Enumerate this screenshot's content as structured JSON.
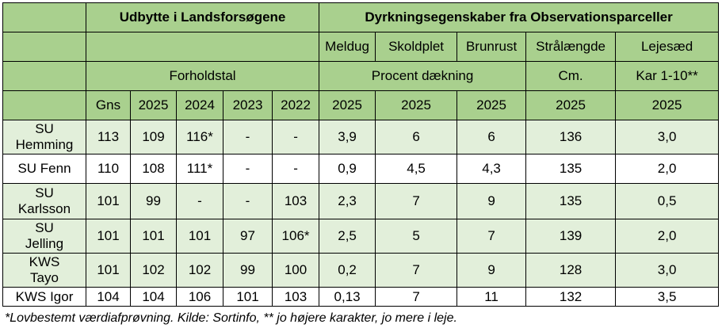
{
  "header": {
    "group_yield": "Udbytte i Landsforsøgene",
    "group_growth": "Dyrkningsegenskaber fra Observationsparceller",
    "disease_cols": [
      "Meldug",
      "Skoldplet",
      "Brunrust"
    ],
    "straw_length": "Strålængde",
    "lodging": "Lejesæd",
    "ratio": "Forholdstal",
    "percent_cover": "Procent dækning",
    "cm": "Cm.",
    "lodging_scale": "Kar 1-10**",
    "year_row": [
      "Gns",
      "2025",
      "2024",
      "2023",
      "2022",
      "2025",
      "2025",
      "2025",
      "2025",
      "2025"
    ]
  },
  "rows": [
    {
      "name": [
        "SU",
        "Hemming"
      ],
      "values": [
        "113",
        "109",
        "116*",
        "-",
        "-",
        "3,9",
        "6",
        "6",
        "136",
        "3,0"
      ]
    },
    {
      "name": [
        "SU Fenn"
      ],
      "values": [
        "110",
        "108",
        "111*",
        "-",
        "-",
        "0,9",
        "4,5",
        "4,3",
        "135",
        "2,0"
      ]
    },
    {
      "name": [
        "SU",
        "Karlsson"
      ],
      "values": [
        "101",
        "99",
        "-",
        "-",
        "103",
        "2,3",
        "7",
        "9",
        "135",
        "0,5"
      ]
    },
    {
      "name": [
        "SU",
        "Jelling"
      ],
      "values": [
        "101",
        "101",
        "101",
        "97",
        "106*",
        "2,5",
        "5",
        "7",
        "139",
        "2,0"
      ]
    },
    {
      "name": [
        "KWS",
        "Tayo"
      ],
      "values": [
        "101",
        "102",
        "102",
        "99",
        "100",
        "0,2",
        "7",
        "9",
        "128",
        "3,0"
      ]
    },
    {
      "name": [
        "KWS Igor"
      ],
      "values": [
        "104",
        "104",
        "106",
        "101",
        "103",
        "0,13",
        "7",
        "11",
        "132",
        "3,5"
      ]
    }
  ],
  "footnote": "*Lovbestemt værdiafprøvning. Kilde: Sortinfo, ** jo højere karakter, jo mere i leje."
}
